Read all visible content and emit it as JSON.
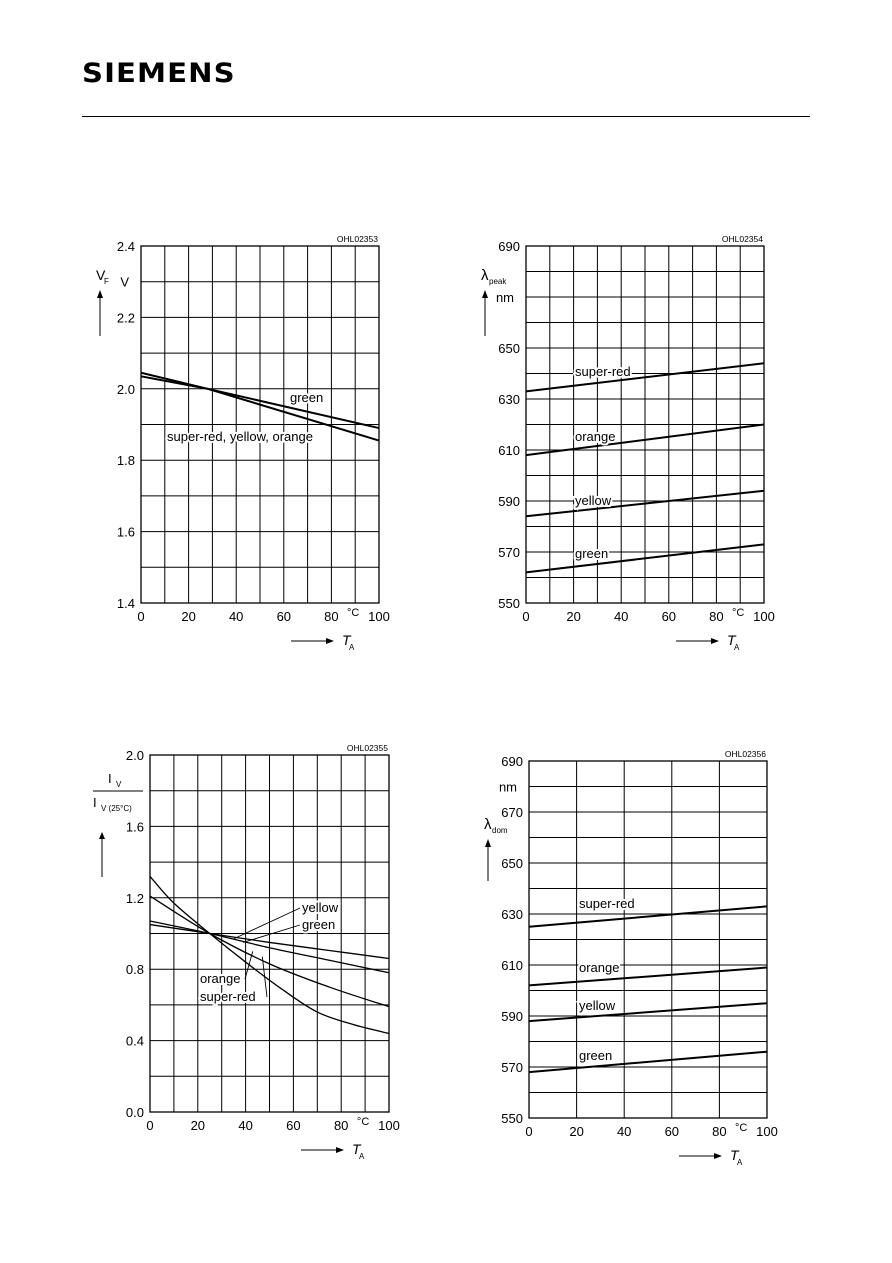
{
  "header": {
    "brand": "SIEMENS"
  },
  "chart_data": [
    {
      "id": "OHL02353",
      "type": "line",
      "code": "OHL02353",
      "xlim": [
        0,
        100
      ],
      "ylim": [
        1.4,
        2.4
      ],
      "xticks": [
        "0",
        "20",
        "40",
        "60",
        "80",
        "100"
      ],
      "yticks": [
        "1.4",
        "1.6",
        "1.8",
        "2.0",
        "2.2",
        "2.4"
      ],
      "x_unit": "°C",
      "y_unit": "V",
      "ylabel": "V",
      "ylabel_sub": "F",
      "xlabel": "T",
      "xlabel_sub": "A",
      "series": [
        {
          "name": "green",
          "x": [
            0,
            28,
            100
          ],
          "y": [
            2.035,
            2.0,
            1.89
          ]
        },
        {
          "name": "super-red, yellow, orange",
          "x": [
            0,
            28,
            100
          ],
          "y": [
            2.045,
            2.0,
            1.855
          ]
        }
      ]
    },
    {
      "id": "OHL02354",
      "type": "line",
      "code": "OHL02354",
      "xlim": [
        0,
        100
      ],
      "ylim": [
        550,
        690
      ],
      "xticks": [
        "0",
        "20",
        "40",
        "60",
        "80",
        "100"
      ],
      "yticks": [
        "550",
        "570",
        "590",
        "610",
        "630",
        "650",
        "690"
      ],
      "x_unit": "°C",
      "y_unit": "nm",
      "ylabel": "λ",
      "ylabel_sub": "peak",
      "xlabel": "T",
      "xlabel_sub": "A",
      "series": [
        {
          "name": "super-red",
          "x": [
            0,
            100
          ],
          "y": [
            633,
            644
          ]
        },
        {
          "name": "orange",
          "x": [
            0,
            100
          ],
          "y": [
            608,
            620
          ]
        },
        {
          "name": "yellow",
          "x": [
            0,
            100
          ],
          "y": [
            584,
            594
          ]
        },
        {
          "name": "green",
          "x": [
            0,
            100
          ],
          "y": [
            562,
            573
          ]
        }
      ]
    },
    {
      "id": "OHL02355",
      "type": "line",
      "code": "OHL02355",
      "xlim": [
        0,
        100
      ],
      "ylim": [
        0.0,
        2.0
      ],
      "xticks": [
        "0",
        "20",
        "40",
        "60",
        "80",
        "100"
      ],
      "yticks": [
        "0.0",
        "0.4",
        "0.8",
        "1.2",
        "1.6",
        "2.0"
      ],
      "x_unit": "°C",
      "ylabel_num": "I",
      "ylabel_num_sub": "V",
      "ylabel_den": "I",
      "ylabel_den_sub": "V (25°C)",
      "xlabel": "T",
      "xlabel_sub": "A",
      "series": [
        {
          "name": "yellow",
          "x": [
            0,
            25,
            50,
            75,
            100
          ],
          "y": [
            1.05,
            1.0,
            0.95,
            0.905,
            0.86
          ]
        },
        {
          "name": "green",
          "x": [
            0,
            25,
            50,
            75,
            100
          ],
          "y": [
            1.07,
            1.0,
            0.92,
            0.85,
            0.78
          ]
        },
        {
          "name": "orange",
          "x": [
            0,
            25,
            50,
            75,
            100
          ],
          "y": [
            1.21,
            1.0,
            0.83,
            0.7,
            0.59
          ]
        },
        {
          "name": "super-red",
          "x": [
            0,
            10,
            25,
            40,
            55,
            70,
            85,
            100
          ],
          "y": [
            1.32,
            1.17,
            1.0,
            0.84,
            0.69,
            0.56,
            0.49,
            0.44
          ]
        }
      ]
    },
    {
      "id": "OHL02356",
      "type": "line",
      "code": "OHL02356",
      "xlim": [
        0,
        100
      ],
      "ylim": [
        550,
        690
      ],
      "xticks": [
        "0",
        "20",
        "40",
        "60",
        "80",
        "100"
      ],
      "yticks": [
        "550",
        "570",
        "590",
        "610",
        "630",
        "650",
        "670",
        "690"
      ],
      "x_unit": "°C",
      "y_unit": "nm",
      "ylabel": "λ",
      "ylabel_sub": "dom",
      "xlabel": "T",
      "xlabel_sub": "A",
      "series": [
        {
          "name": "super-red",
          "x": [
            0,
            100
          ],
          "y": [
            625,
            633
          ]
        },
        {
          "name": "orange",
          "x": [
            0,
            100
          ],
          "y": [
            602,
            609
          ]
        },
        {
          "name": "yellow",
          "x": [
            0,
            100
          ],
          "y": [
            588,
            595
          ]
        },
        {
          "name": "green",
          "x": [
            0,
            100
          ],
          "y": [
            568,
            576
          ]
        }
      ]
    }
  ]
}
